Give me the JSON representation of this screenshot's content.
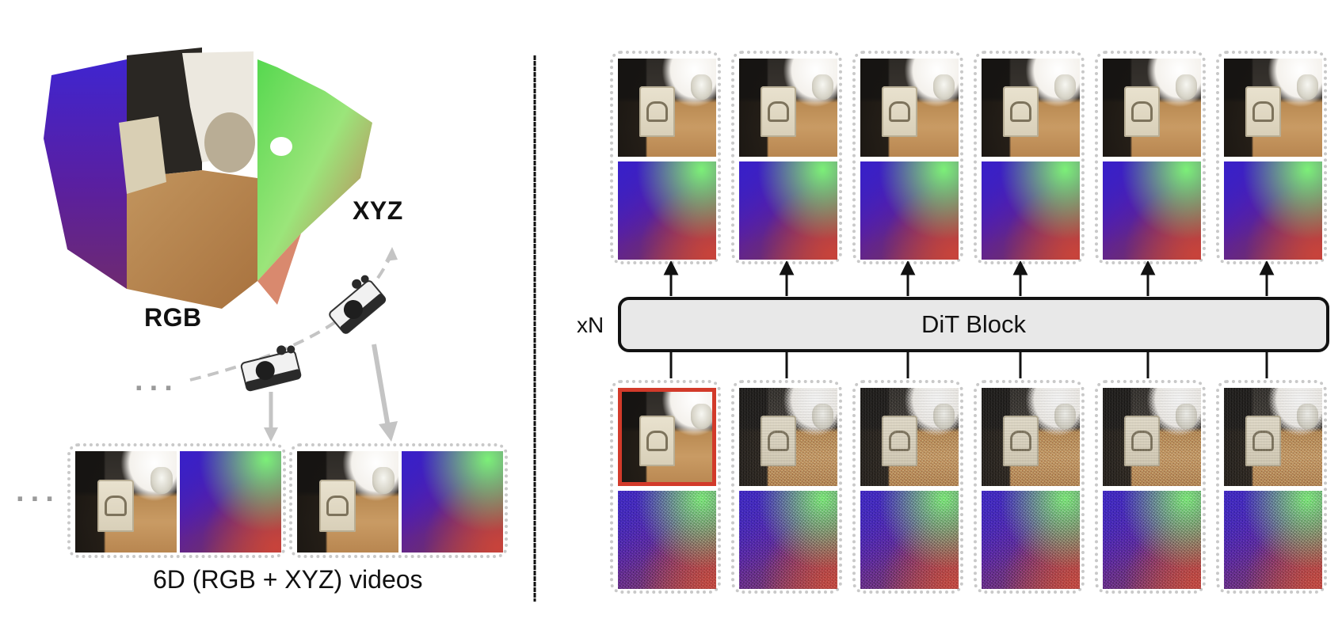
{
  "left_panel": {
    "point_cloud_labels": {
      "rgb": "RGB",
      "xyz": "XYZ"
    },
    "ellipsis_camera": "···",
    "ellipsis_videos": "···",
    "caption": "6D (RGB + XYZ) videos"
  },
  "right_panel": {
    "block_label": "DiT Block",
    "repeat_label": "xN",
    "columns": 6,
    "condition_frame_color": "#d23a2a"
  },
  "colors": {
    "divider": "#111111",
    "dotted_border": "#c9c9c9",
    "arrow_gray": "#c4c4c4",
    "block_fill": "#e8e8e8"
  }
}
